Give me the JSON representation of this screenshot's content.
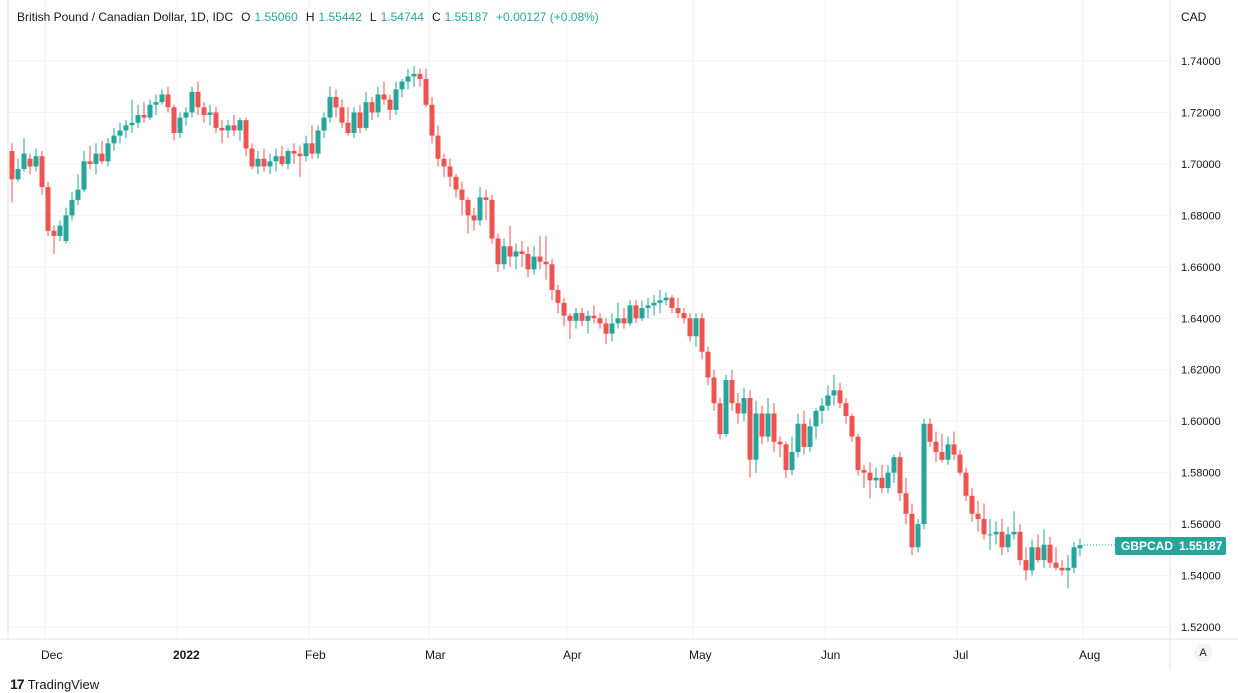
{
  "legend": {
    "title": "British Pound / Canadian Dollar, 1D, IDC",
    "open_label": "O",
    "open": "1.55060",
    "high_label": "H",
    "high": "1.55442",
    "low_label": "L",
    "low": "1.54744",
    "close_label": "C",
    "close": "1.55187",
    "change": "+0.00127 (+0.08%)"
  },
  "price_axis": {
    "currency": "CAD"
  },
  "last_price": {
    "symbol": "GBPCAD",
    "value": "1.55187"
  },
  "auto_scale": {
    "label": "A"
  },
  "footer": {
    "logo": "17",
    "brand": "TradingView"
  },
  "colors": {
    "up": "#26a69a",
    "down": "#ef5350",
    "grid": "#f0f3fa",
    "axis_text": "#131722"
  },
  "chart_data": {
    "type": "candlestick",
    "title": "British Pound / Canadian Dollar, 1D, IDC",
    "ylabel": "CAD",
    "ylim": [
      1.514,
      1.75
    ],
    "y_ticks": [
      "1.74000",
      "1.72000",
      "1.70000",
      "1.68000",
      "1.66000",
      "1.64000",
      "1.62000",
      "1.60000",
      "1.58000",
      "1.56000",
      "1.54000",
      "1.52000"
    ],
    "x_ticks": [
      {
        "label": "Dec",
        "index": 5
      },
      {
        "label": "2022",
        "index": 27
      },
      {
        "label": "Feb",
        "index": 49
      },
      {
        "label": "Mar",
        "index": 69
      },
      {
        "label": "Apr",
        "index": 92
      },
      {
        "label": "May",
        "index": 113
      },
      {
        "label": "Jun",
        "index": 135
      },
      {
        "label": "Jul",
        "index": 157
      },
      {
        "label": "Aug",
        "index": 178
      }
    ],
    "candles": [
      [
        1.705,
        1.708,
        1.685,
        1.694
      ],
      [
        1.694,
        1.702,
        1.693,
        1.698
      ],
      [
        1.698,
        1.71,
        1.697,
        1.704
      ],
      [
        1.702,
        1.704,
        1.696,
        1.699
      ],
      [
        1.699,
        1.706,
        1.697,
        1.703
      ],
      [
        1.703,
        1.705,
        1.688,
        1.691
      ],
      [
        1.691,
        1.693,
        1.672,
        1.674
      ],
      [
        1.674,
        1.676,
        1.665,
        1.672
      ],
      [
        1.672,
        1.678,
        1.67,
        1.676
      ],
      [
        1.67,
        1.683,
        1.669,
        1.68
      ],
      [
        1.68,
        1.689,
        1.678,
        1.686
      ],
      [
        1.686,
        1.696,
        1.684,
        1.69
      ],
      [
        1.69,
        1.705,
        1.689,
        1.701
      ],
      [
        1.701,
        1.707,
        1.698,
        1.7
      ],
      [
        1.7,
        1.708,
        1.696,
        1.704
      ],
      [
        1.704,
        1.709,
        1.7,
        1.701
      ],
      [
        1.701,
        1.71,
        1.699,
        1.708
      ],
      [
        1.708,
        1.714,
        1.705,
        1.711
      ],
      [
        1.711,
        1.716,
        1.708,
        1.713
      ],
      [
        1.713,
        1.717,
        1.71,
        1.715
      ],
      [
        1.715,
        1.725,
        1.712,
        1.716
      ],
      [
        1.716,
        1.723,
        1.714,
        1.719
      ],
      [
        1.719,
        1.724,
        1.716,
        1.718
      ],
      [
        1.718,
        1.725,
        1.717,
        1.723
      ],
      [
        1.723,
        1.727,
        1.719,
        1.724
      ],
      [
        1.724,
        1.729,
        1.723,
        1.727
      ],
      [
        1.727,
        1.73,
        1.72,
        1.722
      ],
      [
        1.722,
        1.723,
        1.709,
        1.712
      ],
      [
        1.712,
        1.72,
        1.71,
        1.718
      ],
      [
        1.718,
        1.722,
        1.715,
        1.72
      ],
      [
        1.72,
        1.73,
        1.718,
        1.728
      ],
      [
        1.728,
        1.732,
        1.719,
        1.722
      ],
      [
        1.722,
        1.724,
        1.716,
        1.719
      ],
      [
        1.719,
        1.723,
        1.715,
        1.72
      ],
      [
        1.72,
        1.722,
        1.712,
        1.714
      ],
      [
        1.714,
        1.717,
        1.708,
        1.713
      ],
      [
        1.713,
        1.717,
        1.71,
        1.715
      ],
      [
        1.715,
        1.719,
        1.711,
        1.713
      ],
      [
        1.713,
        1.718,
        1.709,
        1.717
      ],
      [
        1.717,
        1.718,
        1.703,
        1.706
      ],
      [
        1.706,
        1.708,
        1.698,
        1.699
      ],
      [
        1.699,
        1.705,
        1.696,
        1.702
      ],
      [
        1.702,
        1.706,
        1.697,
        1.699
      ],
      [
        1.699,
        1.704,
        1.696,
        1.701
      ],
      [
        1.701,
        1.706,
        1.697,
        1.703
      ],
      [
        1.703,
        1.707,
        1.699,
        1.7
      ],
      [
        1.7,
        1.706,
        1.698,
        1.705
      ],
      [
        1.705,
        1.708,
        1.7,
        1.704
      ],
      [
        1.704,
        1.707,
        1.695,
        1.703
      ],
      [
        1.703,
        1.711,
        1.701,
        1.708
      ],
      [
        1.708,
        1.715,
        1.702,
        1.704
      ],
      [
        1.704,
        1.715,
        1.702,
        1.713
      ],
      [
        1.713,
        1.72,
        1.71,
        1.718
      ],
      [
        1.718,
        1.73,
        1.716,
        1.726
      ],
      [
        1.726,
        1.729,
        1.718,
        1.722
      ],
      [
        1.722,
        1.725,
        1.714,
        1.716
      ],
      [
        1.716,
        1.722,
        1.711,
        1.712
      ],
      [
        1.712,
        1.722,
        1.71,
        1.72
      ],
      [
        1.72,
        1.723,
        1.712,
        1.714
      ],
      [
        1.714,
        1.728,
        1.713,
        1.724
      ],
      [
        1.724,
        1.726,
        1.717,
        1.72
      ],
      [
        1.72,
        1.73,
        1.718,
        1.727
      ],
      [
        1.727,
        1.732,
        1.723,
        1.725
      ],
      [
        1.725,
        1.727,
        1.717,
        1.721
      ],
      [
        1.721,
        1.732,
        1.719,
        1.729
      ],
      [
        1.729,
        1.733,
        1.726,
        1.732
      ],
      [
        1.732,
        1.737,
        1.729,
        1.734
      ],
      [
        1.734,
        1.738,
        1.73,
        1.735
      ],
      [
        1.735,
        1.737,
        1.73,
        1.733
      ],
      [
        1.733,
        1.737,
        1.722,
        1.723
      ],
      [
        1.723,
        1.726,
        1.708,
        1.711
      ],
      [
        1.711,
        1.715,
        1.699,
        1.702
      ],
      [
        1.702,
        1.704,
        1.695,
        1.699
      ],
      [
        1.699,
        1.702,
        1.691,
        1.695
      ],
      [
        1.695,
        1.696,
        1.687,
        1.69
      ],
      [
        1.69,
        1.693,
        1.68,
        1.686
      ],
      [
        1.686,
        1.687,
        1.673,
        1.68
      ],
      [
        1.68,
        1.683,
        1.674,
        1.678
      ],
      [
        1.678,
        1.691,
        1.676,
        1.687
      ],
      [
        1.687,
        1.69,
        1.678,
        1.686
      ],
      [
        1.686,
        1.688,
        1.669,
        1.671
      ],
      [
        1.671,
        1.673,
        1.658,
        1.661
      ],
      [
        1.661,
        1.671,
        1.659,
        1.668
      ],
      [
        1.668,
        1.676,
        1.66,
        1.664
      ],
      [
        1.664,
        1.669,
        1.659,
        1.666
      ],
      [
        1.666,
        1.67,
        1.66,
        1.665
      ],
      [
        1.665,
        1.668,
        1.656,
        1.659
      ],
      [
        1.659,
        1.668,
        1.657,
        1.664
      ],
      [
        1.664,
        1.672,
        1.659,
        1.662
      ],
      [
        1.662,
        1.672,
        1.655,
        1.661
      ],
      [
        1.661,
        1.663,
        1.647,
        1.651
      ],
      [
        1.651,
        1.653,
        1.642,
        1.646
      ],
      [
        1.646,
        1.648,
        1.637,
        1.641
      ],
      [
        1.641,
        1.642,
        1.632,
        1.639
      ],
      [
        1.639,
        1.644,
        1.636,
        1.642
      ],
      [
        1.642,
        1.644,
        1.637,
        1.639
      ],
      [
        1.639,
        1.643,
        1.634,
        1.641
      ],
      [
        1.641,
        1.645,
        1.638,
        1.64
      ],
      [
        1.64,
        1.642,
        1.636,
        1.638
      ],
      [
        1.638,
        1.64,
        1.63,
        1.634
      ],
      [
        1.634,
        1.642,
        1.631,
        1.638
      ],
      [
        1.638,
        1.646,
        1.636,
        1.64
      ],
      [
        1.64,
        1.644,
        1.636,
        1.638
      ],
      [
        1.638,
        1.647,
        1.637,
        1.645
      ],
      [
        1.645,
        1.647,
        1.638,
        1.64
      ],
      [
        1.64,
        1.647,
        1.639,
        1.644
      ],
      [
        1.644,
        1.648,
        1.64,
        1.645
      ],
      [
        1.645,
        1.649,
        1.641,
        1.646
      ],
      [
        1.646,
        1.651,
        1.642,
        1.647
      ],
      [
        1.647,
        1.65,
        1.645,
        1.648
      ],
      [
        1.648,
        1.649,
        1.642,
        1.644
      ],
      [
        1.644,
        1.648,
        1.64,
        1.642
      ],
      [
        1.642,
        1.644,
        1.638,
        1.64
      ],
      [
        1.64,
        1.642,
        1.631,
        1.633
      ],
      [
        1.633,
        1.642,
        1.629,
        1.64
      ],
      [
        1.64,
        1.642,
        1.624,
        1.627
      ],
      [
        1.627,
        1.629,
        1.614,
        1.617
      ],
      [
        1.617,
        1.62,
        1.604,
        1.607
      ],
      [
        1.607,
        1.609,
        1.593,
        1.595
      ],
      [
        1.595,
        1.618,
        1.594,
        1.616
      ],
      [
        1.616,
        1.62,
        1.604,
        1.607
      ],
      [
        1.607,
        1.611,
        1.599,
        1.603
      ],
      [
        1.603,
        1.613,
        1.6,
        1.609
      ],
      [
        1.609,
        1.612,
        1.578,
        1.585
      ],
      [
        1.585,
        1.608,
        1.58,
        1.603
      ],
      [
        1.603,
        1.606,
        1.591,
        1.594
      ],
      [
        1.594,
        1.609,
        1.592,
        1.603
      ],
      [
        1.603,
        1.607,
        1.588,
        1.592
      ],
      [
        1.592,
        1.594,
        1.586,
        1.591
      ],
      [
        1.591,
        1.592,
        1.578,
        1.581
      ],
      [
        1.581,
        1.594,
        1.579,
        1.588
      ],
      [
        1.588,
        1.603,
        1.586,
        1.599
      ],
      [
        1.599,
        1.604,
        1.587,
        1.59
      ],
      [
        1.59,
        1.601,
        1.588,
        1.598
      ],
      [
        1.598,
        1.605,
        1.593,
        1.604
      ],
      [
        1.604,
        1.609,
        1.599,
        1.606
      ],
      [
        1.606,
        1.614,
        1.604,
        1.61
      ],
      [
        1.61,
        1.618,
        1.606,
        1.612
      ],
      [
        1.612,
        1.615,
        1.605,
        1.607
      ],
      [
        1.607,
        1.609,
        1.599,
        1.602
      ],
      [
        1.602,
        1.603,
        1.592,
        1.594
      ],
      [
        1.594,
        1.595,
        1.579,
        1.581
      ],
      [
        1.581,
        1.583,
        1.574,
        1.58
      ],
      [
        1.58,
        1.584,
        1.57,
        1.577
      ],
      [
        1.577,
        1.582,
        1.574,
        1.578
      ],
      [
        1.578,
        1.583,
        1.572,
        1.574
      ],
      [
        1.574,
        1.583,
        1.572,
        1.58
      ],
      [
        1.58,
        1.587,
        1.576,
        1.586
      ],
      [
        1.586,
        1.588,
        1.569,
        1.572
      ],
      [
        1.572,
        1.578,
        1.56,
        1.564
      ],
      [
        1.564,
        1.568,
        1.548,
        1.551
      ],
      [
        1.551,
        1.562,
        1.549,
        1.56
      ],
      [
        1.56,
        1.601,
        1.558,
        1.599
      ],
      [
        1.599,
        1.601,
        1.59,
        1.592
      ],
      [
        1.592,
        1.596,
        1.584,
        1.588
      ],
      [
        1.588,
        1.595,
        1.584,
        1.585
      ],
      [
        1.585,
        1.594,
        1.583,
        1.591
      ],
      [
        1.591,
        1.596,
        1.585,
        1.587
      ],
      [
        1.587,
        1.589,
        1.579,
        1.58
      ],
      [
        1.58,
        1.582,
        1.569,
        1.571
      ],
      [
        1.571,
        1.574,
        1.561,
        1.564
      ],
      [
        1.564,
        1.569,
        1.557,
        1.562
      ],
      [
        1.562,
        1.568,
        1.554,
        1.556
      ],
      [
        1.556,
        1.562,
        1.55,
        1.556
      ],
      [
        1.556,
        1.561,
        1.552,
        1.557
      ],
      [
        1.557,
        1.562,
        1.548,
        1.551
      ],
      [
        1.551,
        1.559,
        1.549,
        1.556
      ],
      [
        1.556,
        1.565,
        1.554,
        1.557
      ],
      [
        1.557,
        1.56,
        1.544,
        1.546
      ],
      [
        1.546,
        1.551,
        1.538,
        1.542
      ],
      [
        1.542,
        1.554,
        1.54,
        1.551
      ],
      [
        1.551,
        1.556,
        1.545,
        1.546
      ],
      [
        1.546,
        1.558,
        1.543,
        1.552
      ],
      [
        1.552,
        1.555,
        1.543,
        1.545
      ],
      [
        1.545,
        1.551,
        1.542,
        1.543
      ],
      [
        1.543,
        1.546,
        1.54,
        1.542
      ],
      [
        1.542,
        1.548,
        1.535,
        1.543
      ],
      [
        1.543,
        1.553,
        1.541,
        1.551
      ],
      [
        1.5506,
        1.55442,
        1.54744,
        1.55187
      ]
    ]
  }
}
